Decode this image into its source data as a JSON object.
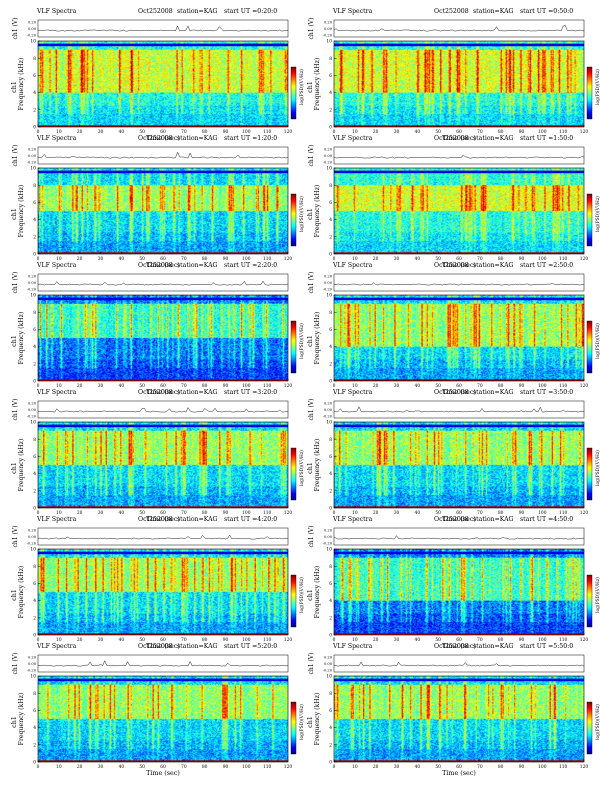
{
  "figure": {
    "header_title": "VLF Spectra",
    "date": "Oct252008",
    "station_label": "station=KAG",
    "ch1_ylabel": "ch1 (V)",
    "spec_ylabel": "Frequency (kHz)",
    "spec_ylabel_prefix": "ch1",
    "xlabel": "Time (sec)",
    "colorbar_label": "log(PSD)(V²/Hz)",
    "ch1_ticks": [
      "0.20",
      "0.00",
      "-0.20"
    ],
    "freq_ticks": [
      "0",
      "2",
      "4",
      "6",
      "8",
      "10"
    ],
    "time_ticks": [
      "0",
      "10",
      "20",
      "30",
      "40",
      "50",
      "60",
      "70",
      "80",
      "90",
      "100",
      "110",
      "120"
    ]
  },
  "colors": {
    "jet": [
      "#00007f",
      "#0000ff",
      "#0080ff",
      "#00ffff",
      "#80ff80",
      "#ffff00",
      "#ff8000",
      "#ff0000",
      "#7f0000"
    ]
  },
  "chart_data": [
    {
      "type": "heatmap",
      "start_label": "start UT =0:20:0",
      "time_range": [
        0,
        120
      ],
      "freq_range": [
        0,
        10
      ],
      "ch1_range": [
        -0.2,
        0.2
      ],
      "intensity": "high",
      "dominant_band_khz": [
        4,
        9
      ]
    },
    {
      "type": "heatmap",
      "start_label": "start UT =0:50:0",
      "time_range": [
        0,
        120
      ],
      "freq_range": [
        0,
        10
      ],
      "ch1_range": [
        -0.2,
        0.2
      ],
      "intensity": "high",
      "dominant_band_khz": [
        4,
        9
      ]
    },
    {
      "type": "heatmap",
      "start_label": "start UT =1:20:0",
      "time_range": [
        0,
        120
      ],
      "freq_range": [
        0,
        10
      ],
      "ch1_range": [
        -0.2,
        0.2
      ],
      "intensity": "medium",
      "dominant_band_khz": [
        5,
        8
      ]
    },
    {
      "type": "heatmap",
      "start_label": "start UT =1:50:0",
      "time_range": [
        0,
        120
      ],
      "freq_range": [
        0,
        10
      ],
      "ch1_range": [
        -0.2,
        0.2
      ],
      "intensity": "high",
      "dominant_band_khz": [
        5,
        8
      ]
    },
    {
      "type": "heatmap",
      "start_label": "start UT =2:20:0",
      "time_range": [
        0,
        120
      ],
      "freq_range": [
        0,
        10
      ],
      "ch1_range": [
        -0.2,
        0.2
      ],
      "intensity": "low",
      "dominant_band_khz": [
        5,
        9
      ]
    },
    {
      "type": "heatmap",
      "start_label": "start UT =2:50:0",
      "time_range": [
        0,
        120
      ],
      "freq_range": [
        0,
        10
      ],
      "ch1_range": [
        -0.2,
        0.2
      ],
      "intensity": "medium",
      "dominant_band_khz": [
        4,
        9
      ]
    },
    {
      "type": "heatmap",
      "start_label": "start UT =3:20:0",
      "time_range": [
        0,
        120
      ],
      "freq_range": [
        0,
        10
      ],
      "ch1_range": [
        -0.2,
        0.2
      ],
      "intensity": "medium",
      "dominant_band_khz": [
        5,
        9
      ]
    },
    {
      "type": "heatmap",
      "start_label": "start UT =3:50:0",
      "time_range": [
        0,
        120
      ],
      "freq_range": [
        0,
        10
      ],
      "ch1_range": [
        -0.2,
        0.2
      ],
      "intensity": "medium",
      "dominant_band_khz": [
        5,
        9
      ]
    },
    {
      "type": "heatmap",
      "start_label": "start UT =4:20:0",
      "time_range": [
        0,
        120
      ],
      "freq_range": [
        0,
        10
      ],
      "ch1_range": [
        -0.2,
        0.2
      ],
      "intensity": "medium",
      "dominant_band_khz": [
        5,
        9
      ]
    },
    {
      "type": "heatmap",
      "start_label": "start UT =4:50:0",
      "time_range": [
        0,
        120
      ],
      "freq_range": [
        0,
        10
      ],
      "ch1_range": [
        -0.2,
        0.2
      ],
      "intensity": "low",
      "dominant_band_khz": [
        4,
        9
      ]
    },
    {
      "type": "heatmap",
      "start_label": "start UT =5:20:0",
      "time_range": [
        0,
        120
      ],
      "freq_range": [
        0,
        10
      ],
      "ch1_range": [
        -0.2,
        0.2
      ],
      "intensity": "medium",
      "dominant_band_khz": [
        5,
        9
      ]
    },
    {
      "type": "heatmap",
      "start_label": "start UT =5:50:0",
      "time_range": [
        0,
        120
      ],
      "freq_range": [
        0,
        10
      ],
      "ch1_range": [
        -0.2,
        0.2
      ],
      "intensity": "medium",
      "dominant_band_khz": [
        5,
        9
      ]
    }
  ]
}
